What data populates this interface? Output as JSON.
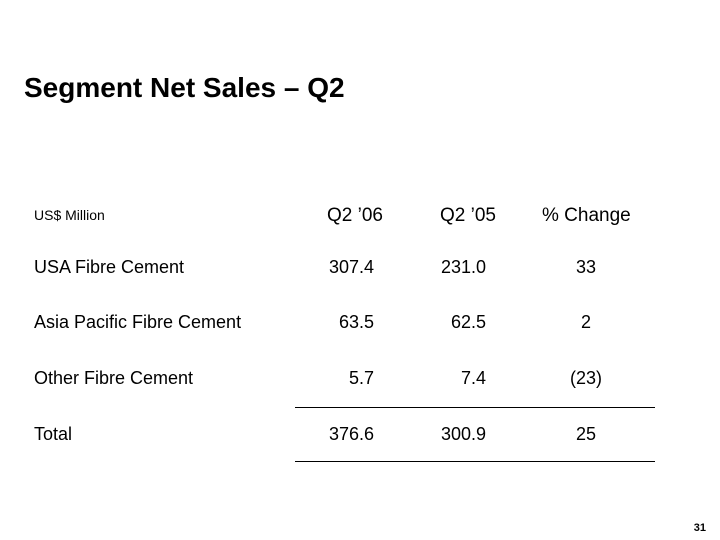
{
  "slide": {
    "title": "Segment Net Sales – Q2",
    "page_number": "31"
  },
  "table": {
    "units_label": "US$ Million",
    "headers": [
      "Q2 ’06",
      "Q2 ’05",
      "% Change"
    ],
    "rows": [
      {
        "label": "USA Fibre Cement",
        "q2_06": "307.4",
        "q2_05": "231.0",
        "change": "33"
      },
      {
        "label": "Asia Pacific Fibre Cement",
        "q2_06": "63.5",
        "q2_05": "62.5",
        "change": "2"
      },
      {
        "label": "Other Fibre Cement",
        "q2_06": "5.7",
        "q2_05": "7.4",
        "change": "(23)"
      },
      {
        "label": "Total",
        "q2_06": "376.6",
        "q2_05": "300.9",
        "change": "25"
      }
    ]
  }
}
